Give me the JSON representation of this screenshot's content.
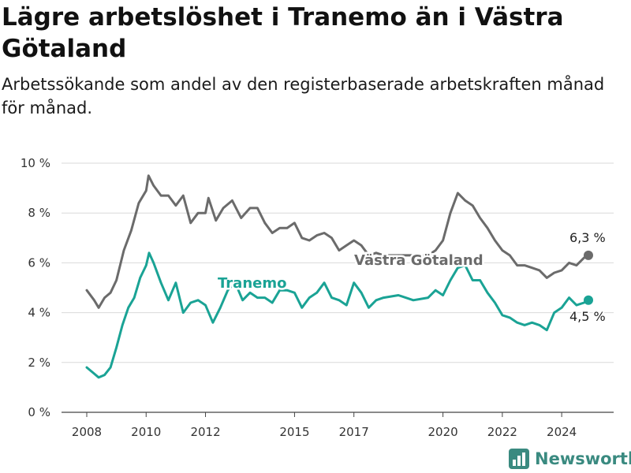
{
  "title": "Lägre arbetslöshet i Tranemo än i Västra Götaland",
  "subtitle": "Arbetssökande som andel av den registerbaserade arbetskraften månad för månad.",
  "brand": "Newsworthy",
  "colors": {
    "tranemo": "#1aa395",
    "vastra": "#6b6b6b",
    "grid": "#d9d9d9"
  },
  "chart_data": {
    "type": "line",
    "ylim": [
      0,
      10
    ],
    "y_ticks": [
      0,
      2,
      4,
      6,
      8,
      10
    ],
    "y_tick_labels": [
      "0 %",
      "2 %",
      "4 %",
      "6 %",
      "8 %",
      "10 %"
    ],
    "x_ticks": [
      2008,
      2010,
      2012,
      2015,
      2017,
      2020,
      2022,
      2024
    ],
    "x_tick_labels": [
      "2008",
      "2010",
      "2012",
      "2015",
      "2017",
      "2020",
      "2022",
      "2024"
    ],
    "grid": true,
    "series": [
      {
        "name": "Västra Götaland",
        "end_label": "6,3 %",
        "points": [
          [
            2008.0,
            4.9
          ],
          [
            2008.25,
            4.5
          ],
          [
            2008.4,
            4.2
          ],
          [
            2008.6,
            4.6
          ],
          [
            2008.8,
            4.8
          ],
          [
            2009.0,
            5.3
          ],
          [
            2009.25,
            6.5
          ],
          [
            2009.5,
            7.3
          ],
          [
            2009.75,
            8.4
          ],
          [
            2010.0,
            8.9
          ],
          [
            2010.08,
            9.5
          ],
          [
            2010.25,
            9.1
          ],
          [
            2010.5,
            8.7
          ],
          [
            2010.75,
            8.7
          ],
          [
            2011.0,
            8.3
          ],
          [
            2011.25,
            8.7
          ],
          [
            2011.5,
            7.6
          ],
          [
            2011.75,
            8.0
          ],
          [
            2012.0,
            8.0
          ],
          [
            2012.1,
            8.6
          ],
          [
            2012.35,
            7.7
          ],
          [
            2012.6,
            8.2
          ],
          [
            2012.9,
            8.5
          ],
          [
            2013.2,
            7.8
          ],
          [
            2013.5,
            8.2
          ],
          [
            2013.75,
            8.2
          ],
          [
            2014.0,
            7.6
          ],
          [
            2014.25,
            7.2
          ],
          [
            2014.5,
            7.4
          ],
          [
            2014.75,
            7.4
          ],
          [
            2015.0,
            7.6
          ],
          [
            2015.25,
            7.0
          ],
          [
            2015.5,
            6.9
          ],
          [
            2015.75,
            7.1
          ],
          [
            2016.0,
            7.2
          ],
          [
            2016.25,
            7.0
          ],
          [
            2016.5,
            6.5
          ],
          [
            2016.75,
            6.7
          ],
          [
            2017.0,
            6.9
          ],
          [
            2017.25,
            6.7
          ],
          [
            2017.5,
            6.3
          ],
          [
            2017.75,
            6.4
          ],
          [
            2018.0,
            6.3
          ],
          [
            2019.5,
            6.3
          ],
          [
            2019.75,
            6.5
          ],
          [
            2020.0,
            6.9
          ],
          [
            2020.25,
            8.0
          ],
          [
            2020.5,
            8.8
          ],
          [
            2020.75,
            8.5
          ],
          [
            2021.0,
            8.3
          ],
          [
            2021.25,
            7.8
          ],
          [
            2021.5,
            7.4
          ],
          [
            2021.75,
            6.9
          ],
          [
            2022.0,
            6.5
          ],
          [
            2022.25,
            6.3
          ],
          [
            2022.5,
            5.9
          ],
          [
            2022.75,
            5.9
          ],
          [
            2023.0,
            5.8
          ],
          [
            2023.25,
            5.7
          ],
          [
            2023.5,
            5.4
          ],
          [
            2023.75,
            5.6
          ],
          [
            2024.0,
            5.7
          ],
          [
            2024.25,
            6.0
          ],
          [
            2024.5,
            5.9
          ],
          [
            2024.75,
            6.2
          ],
          [
            2024.9,
            6.3
          ]
        ]
      },
      {
        "name": "Tranemo",
        "end_label": "4,5 %",
        "points": [
          [
            2008.0,
            1.8
          ],
          [
            2008.2,
            1.6
          ],
          [
            2008.4,
            1.4
          ],
          [
            2008.6,
            1.5
          ],
          [
            2008.8,
            1.8
          ],
          [
            2009.0,
            2.6
          ],
          [
            2009.2,
            3.5
          ],
          [
            2009.4,
            4.2
          ],
          [
            2009.6,
            4.6
          ],
          [
            2009.8,
            5.4
          ],
          [
            2010.0,
            5.9
          ],
          [
            2010.1,
            6.4
          ],
          [
            2010.25,
            6.0
          ],
          [
            2010.5,
            5.2
          ],
          [
            2010.75,
            4.5
          ],
          [
            2011.0,
            5.2
          ],
          [
            2011.25,
            4.0
          ],
          [
            2011.5,
            4.4
          ],
          [
            2011.75,
            4.5
          ],
          [
            2012.0,
            4.3
          ],
          [
            2012.25,
            3.6
          ],
          [
            2012.5,
            4.2
          ],
          [
            2012.75,
            4.9
          ],
          [
            2013.0,
            5.2
          ],
          [
            2013.25,
            4.5
          ],
          [
            2013.5,
            4.8
          ],
          [
            2013.75,
            4.6
          ],
          [
            2014.0,
            4.6
          ],
          [
            2014.25,
            4.4
          ],
          [
            2014.5,
            4.9
          ],
          [
            2014.75,
            4.9
          ],
          [
            2015.0,
            4.8
          ],
          [
            2015.25,
            4.2
          ],
          [
            2015.5,
            4.6
          ],
          [
            2015.75,
            4.8
          ],
          [
            2016.0,
            5.2
          ],
          [
            2016.25,
            4.6
          ],
          [
            2016.5,
            4.5
          ],
          [
            2016.75,
            4.3
          ],
          [
            2017.0,
            5.2
          ],
          [
            2017.25,
            4.8
          ],
          [
            2017.5,
            4.2
          ],
          [
            2017.75,
            4.5
          ],
          [
            2018.0,
            4.6
          ],
          [
            2018.5,
            4.7
          ],
          [
            2019.0,
            4.5
          ],
          [
            2019.5,
            4.6
          ],
          [
            2019.75,
            4.9
          ],
          [
            2020.0,
            4.7
          ],
          [
            2020.25,
            5.3
          ],
          [
            2020.5,
            5.8
          ],
          [
            2020.75,
            5.9
          ],
          [
            2021.0,
            5.3
          ],
          [
            2021.25,
            5.3
          ],
          [
            2021.5,
            4.8
          ],
          [
            2021.75,
            4.4
          ],
          [
            2022.0,
            3.9
          ],
          [
            2022.25,
            3.8
          ],
          [
            2022.5,
            3.6
          ],
          [
            2022.75,
            3.5
          ],
          [
            2023.0,
            3.6
          ],
          [
            2023.25,
            3.5
          ],
          [
            2023.5,
            3.3
          ],
          [
            2023.75,
            4.0
          ],
          [
            2024.0,
            4.2
          ],
          [
            2024.25,
            4.6
          ],
          [
            2024.5,
            4.3
          ],
          [
            2024.75,
            4.4
          ],
          [
            2024.9,
            4.5
          ]
        ]
      }
    ]
  }
}
